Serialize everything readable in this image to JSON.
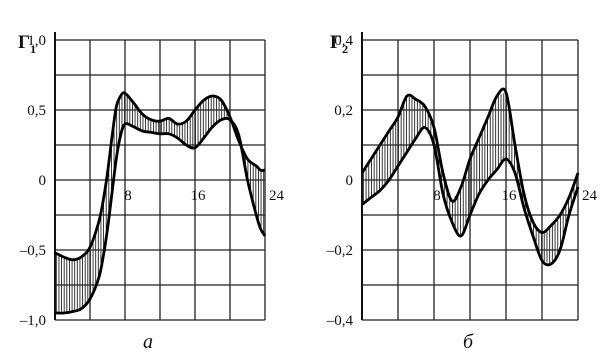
{
  "chart_data": [
    {
      "type": "line",
      "caption": "а",
      "ylabel": {
        "main": "Г",
        "sub": "1"
      },
      "xlim": [
        0,
        24
      ],
      "ylim": [
        -1.0,
        1.0
      ],
      "ytick_labels": [
        {
          "value": 1.0,
          "label": "1,0"
        },
        {
          "value": 0.5,
          "label": "0,5"
        },
        {
          "value": 0,
          "label": "0"
        },
        {
          "value": -0.5,
          "label": "–0,5"
        },
        {
          "value": -1.0,
          "label": "–1,0"
        }
      ],
      "xtick_labels": [
        {
          "value": 8,
          "label": "8"
        },
        {
          "value": 16,
          "label": "16"
        },
        {
          "value": 24,
          "label": "24"
        }
      ],
      "grid": true,
      "hatched_band": true,
      "series": [
        {
          "x": [
            0,
            1,
            2,
            3,
            4,
            5,
            5.5,
            6,
            6.5,
            7,
            7.5,
            8,
            9,
            10,
            11,
            12,
            13,
            14,
            15,
            16,
            17,
            18,
            19,
            20,
            21,
            22,
            23,
            23.5,
            24
          ],
          "y": [
            -0.52,
            -0.55,
            -0.57,
            -0.55,
            -0.48,
            -0.3,
            -0.15,
            0.05,
            0.3,
            0.52,
            0.6,
            0.62,
            0.55,
            0.47,
            0.43,
            0.42,
            0.44,
            0.4,
            0.42,
            0.5,
            0.57,
            0.6,
            0.57,
            0.45,
            0.28,
            0.15,
            0.1,
            0.07,
            0.07
          ]
        },
        {
          "x": [
            0,
            1,
            2,
            3,
            4,
            5,
            5.5,
            6,
            6.5,
            7,
            7.5,
            8,
            9,
            10,
            11,
            12,
            13,
            14,
            15,
            16,
            17,
            18,
            19,
            20,
            21,
            22,
            23,
            23.5,
            24
          ],
          "y": [
            -0.95,
            -0.95,
            -0.94,
            -0.92,
            -0.85,
            -0.7,
            -0.55,
            -0.35,
            -0.1,
            0.15,
            0.32,
            0.4,
            0.38,
            0.35,
            0.34,
            0.33,
            0.33,
            0.3,
            0.25,
            0.23,
            0.3,
            0.38,
            0.43,
            0.43,
            0.32,
            0.0,
            -0.25,
            -0.35,
            -0.4
          ]
        }
      ]
    },
    {
      "type": "line",
      "caption": "б",
      "ylabel": {
        "main": "Г",
        "sub": "2"
      },
      "xlim": [
        0,
        24
      ],
      "ylim": [
        -0.4,
        0.4
      ],
      "ytick_labels": [
        {
          "value": 0.4,
          "label": "0,4"
        },
        {
          "value": 0.2,
          "label": "0,2"
        },
        {
          "value": 0,
          "label": "0"
        },
        {
          "value": -0.2,
          "label": "–0,2"
        },
        {
          "value": -0.4,
          "label": "–0,4"
        }
      ],
      "xtick_labels": [
        {
          "value": 8,
          "label": "8"
        },
        {
          "value": 16,
          "label": "16"
        },
        {
          "value": 24,
          "label": "24"
        }
      ],
      "grid": true,
      "hatched_band": true,
      "series": [
        {
          "x": [
            0,
            1,
            2,
            3,
            4,
            5,
            6,
            7,
            8,
            9,
            10,
            11,
            12,
            13,
            14,
            15,
            16,
            17,
            18,
            19,
            20,
            21,
            22,
            23,
            24
          ],
          "y": [
            0.02,
            0.06,
            0.1,
            0.14,
            0.18,
            0.24,
            0.23,
            0.21,
            0.15,
            0.02,
            -0.06,
            -0.02,
            0.06,
            0.12,
            0.18,
            0.24,
            0.25,
            0.1,
            -0.04,
            -0.12,
            -0.15,
            -0.13,
            -0.1,
            -0.05,
            0.02
          ]
        },
        {
          "x": [
            0,
            1,
            2,
            3,
            4,
            5,
            6,
            7,
            8,
            9,
            10,
            11,
            12,
            13,
            14,
            15,
            16,
            17,
            18,
            19,
            20,
            21,
            22,
            23,
            24
          ],
          "y": [
            -0.07,
            -0.05,
            -0.03,
            0.0,
            0.04,
            0.08,
            0.12,
            0.15,
            0.1,
            -0.04,
            -0.12,
            -0.16,
            -0.1,
            -0.04,
            0.0,
            0.03,
            0.06,
            0.02,
            -0.08,
            -0.16,
            -0.23,
            -0.24,
            -0.2,
            -0.1,
            -0.02
          ]
        }
      ]
    }
  ]
}
